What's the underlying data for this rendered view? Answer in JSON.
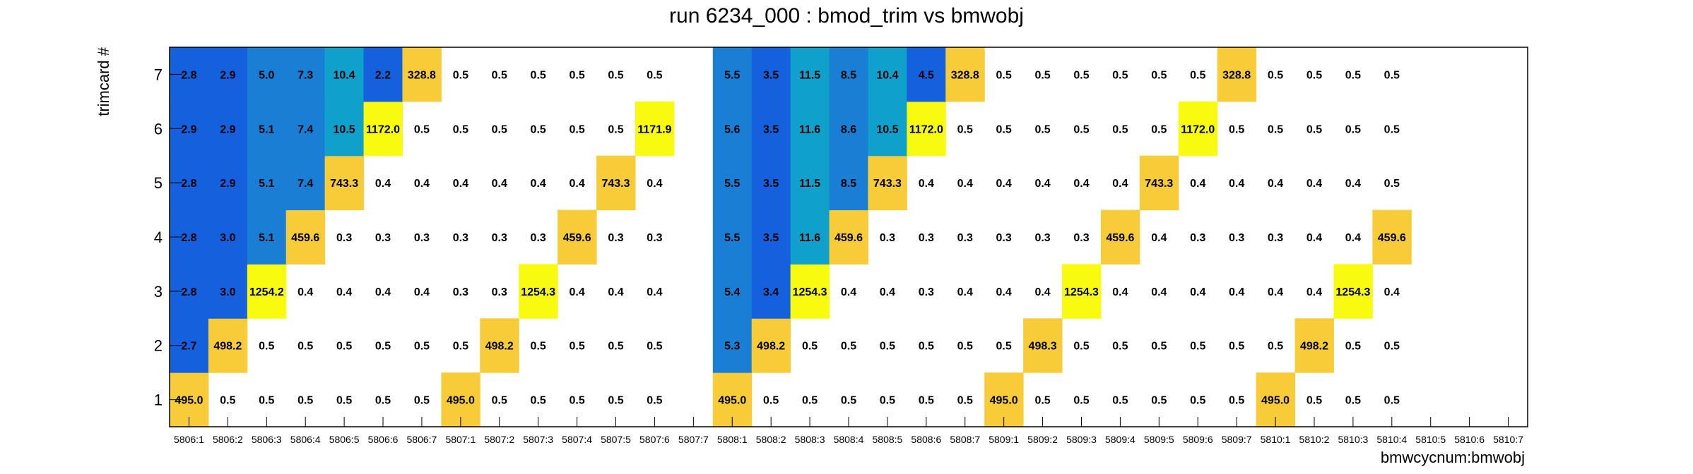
{
  "chart_data": {
    "type": "heatmap",
    "title": "run 6234_000 : bmod_trim vs bmwobj",
    "xlabel": "bmwcycnum:bmwobj",
    "ylabel": "trimcard #",
    "categories": [
      "5806:1",
      "5806:2",
      "5806:3",
      "5806:4",
      "5806:5",
      "5806:6",
      "5806:7",
      "5807:1",
      "5807:2",
      "5807:3",
      "5807:4",
      "5807:5",
      "5807:6",
      "5807:7",
      "5808:1",
      "5808:2",
      "5808:3",
      "5808:4",
      "5808:5",
      "5808:6",
      "5808:7",
      "5809:1",
      "5809:2",
      "5809:3",
      "5809:4",
      "5809:5",
      "5809:6",
      "5809:7",
      "5810:1",
      "5810:2",
      "5810:3",
      "5810:4",
      "5810:5",
      "5810:6",
      "5810:7"
    ],
    "y_categories": [
      "1",
      "2",
      "3",
      "4",
      "5",
      "6",
      "7"
    ],
    "grid": false,
    "colors": {
      "low_blue": "#1560dc",
      "mid_blue": "#1a7fd4",
      "teal": "#10a0cc",
      "yellow": "#f8fa10",
      "gold": "#f8cc38"
    },
    "rows": [
      {
        "trimcard": "1",
        "values": [
          495.0,
          0.5,
          0.5,
          0.5,
          0.5,
          0.5,
          0.5,
          495.0,
          0.5,
          0.5,
          0.5,
          0.5,
          0.5,
          null,
          495.0,
          0.5,
          0.5,
          0.5,
          0.5,
          0.5,
          0.5,
          495.0,
          0.5,
          0.5,
          0.5,
          0.5,
          0.5,
          0.5,
          495.0,
          0.5,
          0.5,
          0.5,
          null,
          null,
          null
        ]
      },
      {
        "trimcard": "2",
        "values": [
          2.7,
          498.2,
          0.5,
          0.5,
          0.5,
          0.5,
          0.5,
          0.5,
          498.2,
          0.5,
          0.5,
          0.5,
          0.5,
          null,
          5.3,
          498.2,
          0.5,
          0.5,
          0.5,
          0.5,
          0.5,
          0.5,
          498.3,
          0.5,
          0.5,
          0.5,
          0.5,
          0.5,
          0.5,
          498.2,
          0.5,
          0.5,
          null,
          null,
          null
        ]
      },
      {
        "trimcard": "3",
        "values": [
          2.8,
          3.0,
          1254.2,
          0.4,
          0.4,
          0.4,
          0.4,
          0.3,
          0.3,
          1254.3,
          0.4,
          0.4,
          0.4,
          null,
          5.4,
          3.4,
          1254.3,
          0.4,
          0.4,
          0.3,
          0.4,
          0.4,
          0.4,
          1254.3,
          0.4,
          0.4,
          0.4,
          0.4,
          0.4,
          0.4,
          1254.3,
          0.4,
          null,
          null,
          null
        ]
      },
      {
        "trimcard": "4",
        "values": [
          2.8,
          3.0,
          5.1,
          459.6,
          0.3,
          0.3,
          0.3,
          0.3,
          0.3,
          0.3,
          459.6,
          0.3,
          0.3,
          null,
          5.5,
          3.5,
          11.6,
          459.6,
          0.3,
          0.3,
          0.3,
          0.3,
          0.3,
          0.3,
          459.6,
          0.4,
          0.3,
          0.3,
          0.3,
          0.4,
          0.4,
          459.6,
          null,
          null,
          null
        ]
      },
      {
        "trimcard": "5",
        "values": [
          2.8,
          2.9,
          5.1,
          7.4,
          743.3,
          0.4,
          0.4,
          0.4,
          0.4,
          0.4,
          0.4,
          743.3,
          0.4,
          null,
          5.5,
          3.5,
          11.5,
          8.5,
          743.3,
          0.4,
          0.4,
          0.4,
          0.4,
          0.4,
          0.4,
          743.3,
          0.4,
          0.4,
          0.4,
          0.4,
          0.4,
          0.5,
          null,
          null,
          null
        ]
      },
      {
        "trimcard": "6",
        "values": [
          2.9,
          2.9,
          5.1,
          7.4,
          10.5,
          1172.0,
          0.5,
          0.5,
          0.5,
          0.5,
          0.5,
          0.5,
          1171.9,
          null,
          5.6,
          3.5,
          11.6,
          8.6,
          10.5,
          1172.0,
          0.5,
          0.5,
          0.5,
          0.5,
          0.5,
          0.5,
          1172.0,
          0.5,
          0.5,
          0.5,
          0.5,
          0.5,
          null,
          null,
          null
        ]
      },
      {
        "trimcard": "7",
        "values": [
          2.8,
          2.9,
          5.0,
          7.3,
          10.4,
          2.2,
          328.8,
          0.5,
          0.5,
          0.5,
          0.5,
          0.5,
          0.5,
          null,
          5.5,
          3.5,
          11.5,
          8.5,
          10.4,
          4.5,
          328.8,
          0.5,
          0.5,
          0.5,
          0.5,
          0.5,
          0.5,
          328.8,
          0.5,
          0.5,
          0.5,
          0.5,
          null,
          null,
          null
        ]
      }
    ]
  }
}
